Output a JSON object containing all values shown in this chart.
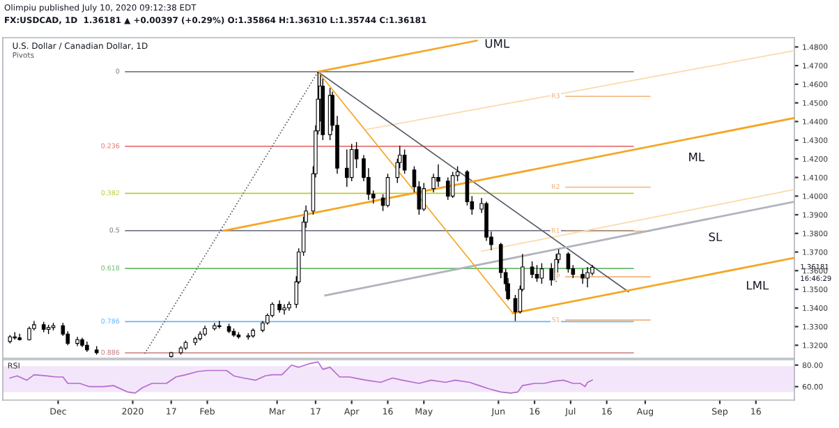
{
  "chart_data": [
    {
      "type": "candlestick",
      "title": "U.S. Dollar / Canadian Dollar, 1D",
      "subtitle": "Pivots",
      "annotations": [
        "Olimpiu published July 10, 2020 09:12:38 EDT",
        "FX:USDCAD, 1D  1.36181 ▲ +0.00397 (+0.29%) O:1.35864 H:1.36310 L:1.35744 C:1.36181",
        "1.36181",
        "16:46:29"
      ],
      "x": [
        "2019-11-11",
        "2019-11-13",
        "2019-11-15",
        "2019-11-19",
        "2019-11-21",
        "2019-11-25",
        "2019-11-27",
        "2019-11-29",
        "2019-12-03",
        "2019-12-05",
        "2019-12-09",
        "2019-12-11",
        "2019-12-13",
        "2019-12-17",
        "2020-01-17",
        "2020-01-21",
        "2020-01-23",
        "2020-01-27",
        "2020-01-29",
        "2020-01-31",
        "2020-02-04",
        "2020-02-06",
        "2020-02-10",
        "2020-02-12",
        "2020-02-14",
        "2020-02-18",
        "2020-02-20",
        "2020-02-24",
        "2020-02-26",
        "2020-02-28",
        "2020-03-02",
        "2020-03-04",
        "2020-03-06",
        "2020-03-09",
        "2020-03-10",
        "2020-03-12",
        "2020-03-13",
        "2020-03-16",
        "2020-03-17",
        "2020-03-18",
        "2020-03-19",
        "2020-03-20",
        "2020-03-23",
        "2020-03-24",
        "2020-03-26",
        "2020-03-30",
        "2020-04-01",
        "2020-04-03",
        "2020-04-06",
        "2020-04-08",
        "2020-04-10",
        "2020-04-14",
        "2020-04-16",
        "2020-04-20",
        "2020-04-21",
        "2020-04-23",
        "2020-04-27",
        "2020-04-29",
        "2020-05-01",
        "2020-05-05",
        "2020-05-07",
        "2020-05-11",
        "2020-05-13",
        "2020-05-15",
        "2020-05-19",
        "2020-05-21",
        "2020-05-25",
        "2020-05-27",
        "2020-05-29",
        "2020-06-02",
        "2020-06-04",
        "2020-06-05",
        "2020-06-08",
        "2020-06-10",
        "2020-06-11",
        "2020-06-15",
        "2020-06-17",
        "2020-06-19",
        "2020-06-23",
        "2020-06-25",
        "2020-06-26",
        "2020-06-30",
        "2020-07-02",
        "2020-07-06",
        "2020-07-08",
        "2020-07-10"
      ],
      "ohlc": [
        [
          1.322,
          1.3255,
          1.321,
          1.3245
        ],
        [
          1.3245,
          1.327,
          1.323,
          1.324
        ],
        [
          1.324,
          1.3262,
          1.3225,
          1.323
        ],
        [
          1.323,
          1.33,
          1.3225,
          1.329
        ],
        [
          1.329,
          1.333,
          1.328,
          1.331
        ],
        [
          1.331,
          1.3325,
          1.327,
          1.3285
        ],
        [
          1.3285,
          1.331,
          1.326,
          1.3295
        ],
        [
          1.3295,
          1.332,
          1.328,
          1.3305
        ],
        [
          1.3305,
          1.332,
          1.325,
          1.326
        ],
        [
          1.326,
          1.3275,
          1.32,
          1.321
        ],
        [
          1.321,
          1.3245,
          1.3195,
          1.323
        ],
        [
          1.323,
          1.324,
          1.319,
          1.32
        ],
        [
          1.32,
          1.322,
          1.3165,
          1.3175
        ],
        [
          1.3175,
          1.3195,
          1.315,
          1.316
        ],
        [
          1.314,
          1.3165,
          1.3135,
          1.316
        ],
        [
          1.316,
          1.3195,
          1.315,
          1.3185
        ],
        [
          1.3185,
          1.3225,
          1.3175,
          1.3215
        ],
        [
          1.3215,
          1.3245,
          1.32,
          1.3235
        ],
        [
          1.3235,
          1.3275,
          1.3225,
          1.326
        ],
        [
          1.326,
          1.3305,
          1.325,
          1.329
        ],
        [
          1.329,
          1.332,
          1.328,
          1.3305
        ],
        [
          1.3305,
          1.333,
          1.329,
          1.33
        ],
        [
          1.33,
          1.3315,
          1.3265,
          1.3275
        ],
        [
          1.3275,
          1.329,
          1.3245,
          1.3255
        ],
        [
          1.3255,
          1.327,
          1.3235,
          1.3245
        ],
        [
          1.3245,
          1.3265,
          1.323,
          1.325
        ],
        [
          1.325,
          1.329,
          1.324,
          1.328
        ],
        [
          1.328,
          1.333,
          1.327,
          1.332
        ],
        [
          1.332,
          1.337,
          1.331,
          1.336
        ],
        [
          1.336,
          1.343,
          1.335,
          1.342
        ],
        [
          1.342,
          1.344,
          1.3375,
          1.339
        ],
        [
          1.339,
          1.342,
          1.3365,
          1.34
        ],
        [
          1.34,
          1.3435,
          1.3385,
          1.342
        ],
        [
          1.342,
          1.357,
          1.34,
          1.354
        ],
        [
          1.354,
          1.372,
          1.353,
          1.37
        ],
        [
          1.37,
          1.389,
          1.368,
          1.386
        ],
        [
          1.386,
          1.395,
          1.383,
          1.392
        ],
        [
          1.392,
          1.416,
          1.39,
          1.412
        ],
        [
          1.412,
          1.438,
          1.41,
          1.435
        ],
        [
          1.435,
          1.4667,
          1.433,
          1.452
        ],
        [
          1.452,
          1.465,
          1.44,
          1.459
        ],
        [
          1.459,
          1.463,
          1.43,
          1.433
        ],
        [
          1.433,
          1.458,
          1.43,
          1.454
        ],
        [
          1.454,
          1.456,
          1.435,
          1.438
        ],
        [
          1.438,
          1.443,
          1.412,
          1.415
        ],
        [
          1.415,
          1.425,
          1.405,
          1.41
        ],
        [
          1.41,
          1.428,
          1.408,
          1.425
        ],
        [
          1.425,
          1.429,
          1.415,
          1.42
        ],
        [
          1.42,
          1.422,
          1.408,
          1.41
        ],
        [
          1.41,
          1.415,
          1.398,
          1.401
        ],
        [
          1.401,
          1.403,
          1.396,
          1.399
        ],
        [
          1.399,
          1.401,
          1.392,
          1.395
        ],
        [
          1.395,
          1.412,
          1.394,
          1.41
        ],
        [
          1.41,
          1.42,
          1.407,
          1.418
        ],
        [
          1.418,
          1.427,
          1.415,
          1.422
        ],
        [
          1.422,
          1.425,
          1.412,
          1.414
        ],
        [
          1.414,
          1.416,
          1.402,
          1.405
        ],
        [
          1.405,
          1.408,
          1.39,
          1.393
        ],
        [
          1.393,
          1.407,
          1.392,
          1.404
        ],
        [
          1.404,
          1.412,
          1.402,
          1.41
        ],
        [
          1.41,
          1.417,
          1.405,
          1.408
        ],
        [
          1.408,
          1.41,
          1.398,
          1.4
        ],
        [
          1.4,
          1.413,
          1.399,
          1.411
        ],
        [
          1.411,
          1.416,
          1.408,
          1.413
        ],
        [
          1.413,
          1.414,
          1.395,
          1.397
        ],
        [
          1.397,
          1.4,
          1.39,
          1.393
        ],
        [
          1.393,
          1.399,
          1.391,
          1.396
        ],
        [
          1.396,
          1.397,
          1.376,
          1.378
        ],
        [
          1.378,
          1.381,
          1.371,
          1.374
        ],
        [
          1.374,
          1.375,
          1.356,
          1.359
        ],
        [
          1.359,
          1.361,
          1.349,
          1.353
        ],
        [
          1.353,
          1.356,
          1.344,
          1.345
        ],
        [
          1.345,
          1.347,
          1.333,
          1.338
        ],
        [
          1.338,
          1.352,
          1.337,
          1.35
        ],
        [
          1.35,
          1.369,
          1.349,
          1.362
        ],
        [
          1.362,
          1.365,
          1.356,
          1.358
        ],
        [
          1.358,
          1.363,
          1.354,
          1.356
        ],
        [
          1.356,
          1.364,
          1.353,
          1.361
        ],
        [
          1.361,
          1.364,
          1.352,
          1.355
        ],
        [
          1.355,
          1.369,
          1.354,
          1.366
        ],
        [
          1.366,
          1.3715,
          1.364,
          1.369
        ],
        [
          1.369,
          1.37,
          1.359,
          1.361
        ],
        [
          1.361,
          1.363,
          1.356,
          1.358
        ],
        [
          1.358,
          1.361,
          1.353,
          1.356
        ],
        [
          1.356,
          1.362,
          1.351,
          1.359
        ],
        [
          1.35864,
          1.3631,
          1.35744,
          1.36181
        ]
      ],
      "series": [
        {
          "type": "line",
          "name": "0",
          "color": "#787b86",
          "x": [
            "2019-12-29",
            "2020-07-27"
          ],
          "values": [
            1.4667,
            1.4667
          ]
        },
        {
          "type": "line",
          "name": "0.236",
          "color": "#e57373",
          "x": [
            "2019-12-29",
            "2020-07-27"
          ],
          "values": [
            1.4267,
            1.4267
          ]
        },
        {
          "type": "line",
          "name": "0.382",
          "color": "#c0ca33",
          "x": [
            "2019-12-29",
            "2020-07-27"
          ],
          "values": [
            1.4015,
            1.4015
          ]
        },
        {
          "type": "line",
          "name": "0.5",
          "color": "#787b86",
          "x": [
            "2019-12-29",
            "2020-07-27"
          ],
          "values": [
            1.3815,
            1.3815
          ]
        },
        {
          "type": "line",
          "name": "0.618",
          "color": "#66bb6a",
          "x": [
            "2019-12-29",
            "2020-07-27"
          ],
          "values": [
            1.3612,
            1.3612
          ]
        },
        {
          "type": "line",
          "name": "0.786",
          "color": "#64b5f6",
          "x": [
            "2019-12-29",
            "2020-07-27"
          ],
          "values": [
            1.3327,
            1.3327
          ]
        },
        {
          "type": "line",
          "name": "0.886",
          "color": "#c77c7c",
          "x": [
            "2019-12-29",
            "2020-07-27"
          ],
          "values": [
            1.3159,
            1.3159
          ]
        },
        {
          "type": "line",
          "name": "R3",
          "color": "#f0b27a",
          "x": [
            "2020-06-29",
            "2020-08-03"
          ],
          "values": [
            1.4535,
            1.4535
          ]
        },
        {
          "type": "line",
          "name": "R2",
          "color": "#f0b27a",
          "x": [
            "2020-06-29",
            "2020-08-03"
          ],
          "values": [
            1.4048,
            1.4048
          ]
        },
        {
          "type": "line",
          "name": "R1",
          "color": "#f0b27a",
          "x": [
            "2020-06-29",
            "2020-08-03"
          ],
          "values": [
            1.3812,
            1.3812
          ]
        },
        {
          "type": "line",
          "name": "P",
          "color": "#f0b27a",
          "x": [
            "2020-06-29",
            "2020-08-03"
          ],
          "values": [
            1.3567,
            1.3567
          ]
        },
        {
          "type": "line",
          "name": "S1",
          "color": "#f0b27a",
          "x": [
            "2020-06-29",
            "2020-08-03"
          ],
          "values": [
            1.3335,
            1.3335
          ]
        },
        {
          "type": "line",
          "line_style": "dotted",
          "color": "#555555",
          "x": [
            "2020-01-06",
            "2020-03-18"
          ],
          "values": [
            1.3155,
            1.4667
          ]
        },
        {
          "type": "line",
          "color": "#fbd9a8",
          "x": [
            "2020-04-07",
            "2020-10-02"
          ],
          "values": [
            1.4357,
            1.478
          ]
        },
        {
          "type": "line",
          "color": "#fbd9a8",
          "x": [
            "2020-05-25",
            "2020-10-02"
          ],
          "values": [
            1.3705,
            1.4035
          ]
        },
        {
          "type": "line",
          "color": "#555a66",
          "x": [
            "2020-03-18",
            "2020-07-25"
          ],
          "values": [
            1.4667,
            1.3487
          ]
        },
        {
          "type": "line",
          "name": "SL",
          "color": "#b0b3bc",
          "x": [
            "2020-03-21",
            "2020-10-02"
          ],
          "values": [
            1.3467,
            1.397
          ]
        },
        {
          "type": "line",
          "color": "#f5a623",
          "x": [
            "2020-03-18",
            "2020-06-07"
          ],
          "values": [
            1.4667,
            1.3372
          ]
        },
        {
          "type": "line",
          "name": "UML",
          "color": "#f5a623",
          "x": [
            "2020-03-18",
            "2020-05-23"
          ],
          "values": [
            1.4667,
            1.4834
          ]
        },
        {
          "type": "line",
          "name": "ML",
          "color": "#f5a623",
          "x": [
            "2020-02-08",
            "2020-10-02"
          ],
          "values": [
            1.3815,
            1.4419
          ]
        },
        {
          "type": "line",
          "name": "LML",
          "color": "#f5a623",
          "x": [
            "2020-06-07",
            "2020-10-02"
          ],
          "values": [
            1.3372,
            1.3669
          ]
        }
      ],
      "xlim": [
        "2019-11-08",
        "2020-10-02"
      ],
      "ylim": [
        1.313,
        1.485
      ],
      "yticks": [
        {
          "value": 1.32,
          "label": "1.3200"
        },
        {
          "value": 1.33,
          "label": "1.3300"
        },
        {
          "value": 1.34,
          "label": "1.3400"
        },
        {
          "value": 1.35,
          "label": "1.3500"
        },
        {
          "value": 1.36,
          "label": "1.3600"
        },
        {
          "value": 1.37,
          "label": "1.3700"
        },
        {
          "value": 1.38,
          "label": "1.3800"
        },
        {
          "value": 1.39,
          "label": "1.3900"
        },
        {
          "value": 1.4,
          "label": "1.4000"
        },
        {
          "value": 1.41,
          "label": "1.4100"
        },
        {
          "value": 1.42,
          "label": "1.4200"
        },
        {
          "value": 1.43,
          "label": "1.4300"
        },
        {
          "value": 1.44,
          "label": "1.4400"
        },
        {
          "value": 1.45,
          "label": "1.4500"
        },
        {
          "value": 1.46,
          "label": "1.4600"
        },
        {
          "value": 1.47,
          "label": "1.4700"
        },
        {
          "value": 1.48,
          "label": "1.4800"
        }
      ],
      "tick_labels": "y"
    },
    {
      "type": "line",
      "title": "RSI",
      "x": [
        "2019-11-11",
        "2019-11-14",
        "2019-11-18",
        "2019-11-21",
        "2019-11-26",
        "2019-11-30",
        "2019-12-03",
        "2019-12-05",
        "2019-12-10",
        "2019-12-14",
        "2019-12-20",
        "2019-12-24",
        "2019-12-30",
        "2020-01-02",
        "2020-01-05",
        "2020-01-09",
        "2020-01-15",
        "2020-01-19",
        "2020-01-23",
        "2020-01-28",
        "2020-02-01",
        "2020-02-05",
        "2020-02-09",
        "2020-02-12",
        "2020-02-16",
        "2020-02-21",
        "2020-02-25",
        "2020-02-28",
        "2020-03-03",
        "2020-03-07",
        "2020-03-10",
        "2020-03-14",
        "2020-03-18",
        "2020-03-20",
        "2020-03-23",
        "2020-03-27",
        "2020-03-31",
        "2020-04-07",
        "2020-04-13",
        "2020-04-18",
        "2020-04-22",
        "2020-04-29",
        "2020-05-04",
        "2020-05-10",
        "2020-05-14",
        "2020-05-20",
        "2020-05-24",
        "2020-05-28",
        "2020-06-02",
        "2020-06-06",
        "2020-06-09",
        "2020-06-11",
        "2020-06-16",
        "2020-06-20",
        "2020-06-24",
        "2020-06-28",
        "2020-07-02",
        "2020-07-05",
        "2020-07-07",
        "2020-07-08",
        "2020-07-10"
      ],
      "series": [
        {
          "color": "#b36bd1",
          "values": [
            68,
            70,
            66,
            71,
            70,
            69,
            69,
            63,
            63,
            60,
            60,
            61,
            55,
            54,
            59,
            63,
            63,
            69,
            71,
            74,
            75,
            75,
            75,
            70,
            68,
            66,
            70,
            71,
            71,
            80,
            78,
            81,
            83,
            76,
            78,
            69,
            69,
            66,
            64,
            68,
            66,
            63,
            66,
            64,
            66,
            64,
            61,
            58,
            55,
            54,
            55,
            61,
            63,
            63,
            65,
            66,
            63,
            63,
            60,
            64,
            66
          ]
        }
      ],
      "bands": [
        {
          "axis": "y",
          "from": 55,
          "to": 79,
          "color": "#f3e6fa"
        }
      ],
      "xlim": [
        "2019-11-08",
        "2020-10-02"
      ],
      "ylim": [
        47.5,
        85
      ],
      "yticks": [
        {
          "value": 60,
          "label": "60.00"
        },
        {
          "value": 80,
          "label": "80.00"
        }
      ],
      "xticks": [
        {
          "value": "2019-12-01",
          "label": "Dec"
        },
        {
          "value": "2020-01-01",
          "label": "2020"
        },
        {
          "value": "2020-01-17",
          "label": "17"
        },
        {
          "value": "2020-02-01",
          "label": "Feb"
        },
        {
          "value": "2020-03-01",
          "label": "Mar"
        },
        {
          "value": "2020-03-17",
          "label": "17"
        },
        {
          "value": "2020-04-01",
          "label": "Apr"
        },
        {
          "value": "2020-04-16",
          "label": "16"
        },
        {
          "value": "2020-05-01",
          "label": "May"
        },
        {
          "value": "2020-06-01",
          "label": "Jun"
        },
        {
          "value": "2020-06-16",
          "label": "16"
        },
        {
          "value": "2020-07-01",
          "label": "Jul"
        },
        {
          "value": "2020-07-16",
          "label": "16"
        },
        {
          "value": "2020-08-01",
          "label": "Aug"
        },
        {
          "value": "2020-09-01",
          "label": "Sep"
        },
        {
          "value": "2020-09-16",
          "label": "16"
        }
      ]
    }
  ]
}
